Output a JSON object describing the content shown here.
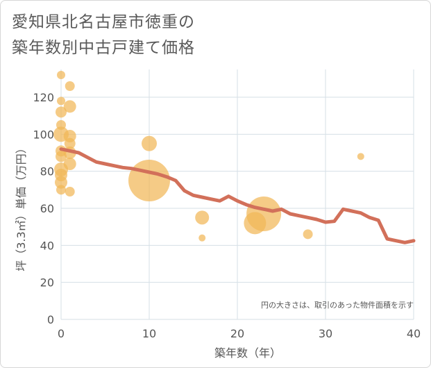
{
  "title_line1": "愛知県北名古屋市徳重の",
  "title_line2": "築年数別中古戸建て価格",
  "colors": {
    "line": "#d2705a",
    "bubble": "#f1b757",
    "grid": "#d5dfe6",
    "text": "#555555"
  },
  "chart_data": {
    "type": "scatter",
    "title": "愛知県北名古屋市徳重の 築年数別中古戸建て価格",
    "xlabel": "築年数（年）",
    "ylabel": "坪（3.3㎡）単価（万円）",
    "xlim": [
      0,
      40
    ],
    "ylim": [
      0,
      135
    ],
    "xticks": [
      0,
      10,
      20,
      30,
      40
    ],
    "yticks": [
      0,
      20,
      40,
      60,
      80,
      100,
      120
    ],
    "note": "円の大きさは、取引のあった物件面積を示す",
    "line": [
      [
        0,
        92
      ],
      [
        1,
        91
      ],
      [
        2,
        90
      ],
      [
        3,
        87.5
      ],
      [
        4,
        85
      ],
      [
        5,
        84
      ],
      [
        6,
        83
      ],
      [
        7,
        82
      ],
      [
        8,
        81.5
      ],
      [
        9,
        80.5
      ],
      [
        10,
        79.5
      ],
      [
        11,
        78.5
      ],
      [
        12,
        77
      ],
      [
        13,
        75
      ],
      [
        14,
        69.5
      ],
      [
        15,
        67
      ],
      [
        16,
        66
      ],
      [
        17,
        65
      ],
      [
        18,
        64
      ],
      [
        19,
        66.5
      ],
      [
        20,
        64
      ],
      [
        21,
        62
      ],
      [
        22,
        60.5
      ],
      [
        23,
        59.5
      ],
      [
        24,
        58.5
      ],
      [
        25,
        59.5
      ],
      [
        26,
        57
      ],
      [
        27,
        56
      ],
      [
        28,
        55
      ],
      [
        29,
        54
      ],
      [
        30,
        52.5
      ],
      [
        31,
        53
      ],
      [
        32,
        59.5
      ],
      [
        33,
        58.5
      ],
      [
        34,
        57.5
      ],
      [
        35,
        55
      ],
      [
        36,
        53.5
      ],
      [
        37,
        43.5
      ],
      [
        38,
        42.5
      ],
      [
        39,
        41.5
      ],
      [
        40,
        42.5
      ]
    ],
    "bubbles": [
      {
        "x": 0,
        "y": 132,
        "r": 6
      },
      {
        "x": 0,
        "y": 118,
        "r": 6
      },
      {
        "x": 0,
        "y": 112,
        "r": 8
      },
      {
        "x": 0,
        "y": 105,
        "r": 7
      },
      {
        "x": 0,
        "y": 100,
        "r": 11
      },
      {
        "x": 0,
        "y": 91,
        "r": 8
      },
      {
        "x": 0,
        "y": 88,
        "r": 8
      },
      {
        "x": 0,
        "y": 81,
        "r": 10
      },
      {
        "x": 0,
        "y": 78,
        "r": 9
      },
      {
        "x": 0,
        "y": 74,
        "r": 9
      },
      {
        "x": 0,
        "y": 70,
        "r": 7
      },
      {
        "x": 1,
        "y": 126,
        "r": 7
      },
      {
        "x": 1,
        "y": 115,
        "r": 9
      },
      {
        "x": 1,
        "y": 99,
        "r": 9
      },
      {
        "x": 1,
        "y": 95,
        "r": 8
      },
      {
        "x": 1,
        "y": 90,
        "r": 9
      },
      {
        "x": 1,
        "y": 84,
        "r": 9
      },
      {
        "x": 1,
        "y": 69,
        "r": 7
      },
      {
        "x": 10,
        "y": 95,
        "r": 11
      },
      {
        "x": 10,
        "y": 75,
        "r": 30
      },
      {
        "x": 16,
        "y": 55,
        "r": 10
      },
      {
        "x": 16,
        "y": 44,
        "r": 5
      },
      {
        "x": 22,
        "y": 52,
        "r": 16
      },
      {
        "x": 23,
        "y": 57,
        "r": 25
      },
      {
        "x": 28,
        "y": 46,
        "r": 7
      },
      {
        "x": 34,
        "y": 88,
        "r": 5
      }
    ]
  }
}
